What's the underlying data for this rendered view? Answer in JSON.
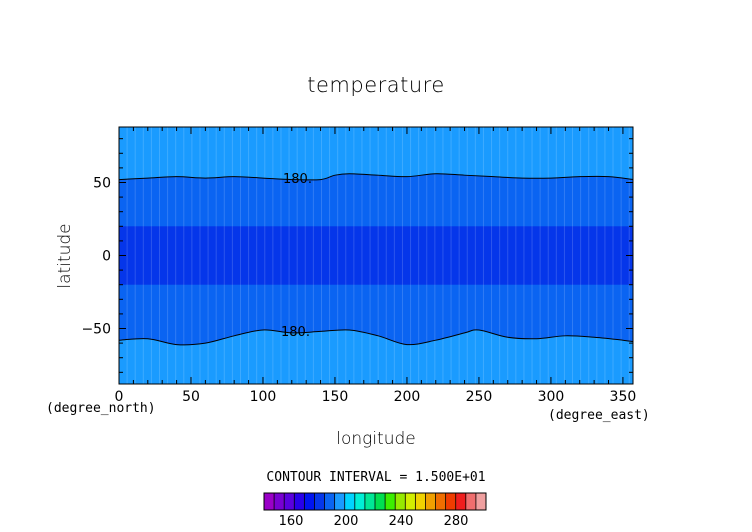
{
  "chart_data": {
    "type": "contour",
    "title": "temperature",
    "xlabel": "longitude",
    "ylabel": "latitude",
    "x_unit": "(degree_east)",
    "y_unit": "(degree_north)",
    "xlim": [
      0,
      357
    ],
    "ylim": [
      -88,
      88
    ],
    "x_ticks": [
      0,
      50,
      100,
      150,
      200,
      250,
      300,
      350
    ],
    "y_ticks": [
      -50,
      0,
      50
    ],
    "contour_interval_text": "CONTOUR INTERVAL = 1.500E+01",
    "contour_level_label": "180.",
    "bands": [
      {
        "name": "north-cap",
        "y_from": 88,
        "y_to": "north_contour",
        "color": "#1a9bff"
      },
      {
        "name": "north-mid",
        "y_from": "north_contour",
        "y_to": 20,
        "color": "#0a64f2"
      },
      {
        "name": "equatorial",
        "y_from": 20,
        "y_to": -20,
        "color": "#0536ea"
      },
      {
        "name": "south-mid",
        "y_from": -20,
        "y_to": "south_contour",
        "color": "#0a64f2"
      },
      {
        "name": "south-cap",
        "y_from": "south_contour",
        "y_to": -88,
        "color": "#1a9bff"
      }
    ],
    "north_contour": {
      "level": 180,
      "lon": [
        0,
        20,
        40,
        60,
        80,
        100,
        120,
        140,
        150,
        160,
        180,
        200,
        220,
        240,
        260,
        280,
        300,
        320,
        340,
        357
      ],
      "lat": [
        52,
        53,
        54,
        53,
        54,
        53,
        52,
        52,
        55,
        56,
        55,
        54,
        56,
        55,
        54,
        53,
        53,
        54,
        54,
        52
      ]
    },
    "south_contour": {
      "level": 180,
      "lon": [
        0,
        20,
        40,
        60,
        80,
        100,
        120,
        140,
        160,
        180,
        200,
        220,
        240,
        250,
        270,
        290,
        310,
        330,
        350,
        357
      ],
      "lat": [
        -58,
        -57,
        -61,
        -60,
        -55,
        -51,
        -53,
        -52,
        -51,
        -55,
        -61,
        -58,
        -53,
        -51,
        -56,
        -57,
        -55,
        -56,
        -58,
        -59
      ]
    },
    "colorbar": {
      "colors": [
        "#9a00c8",
        "#7800d2",
        "#5a00de",
        "#2800ea",
        "#0014f0",
        "#0536ea",
        "#0a64f2",
        "#1a9bff",
        "#00d4ff",
        "#00f0d6",
        "#00e896",
        "#00e050",
        "#3cee00",
        "#96ea00",
        "#d2ee00",
        "#f0d200",
        "#f0a000",
        "#f06e00",
        "#f03c00",
        "#f01e1e",
        "#f06e6e",
        "#f0a0a0"
      ],
      "ticks": [
        160,
        200,
        240,
        280
      ],
      "tick_positions": [
        4,
        8,
        12,
        16
      ]
    }
  }
}
